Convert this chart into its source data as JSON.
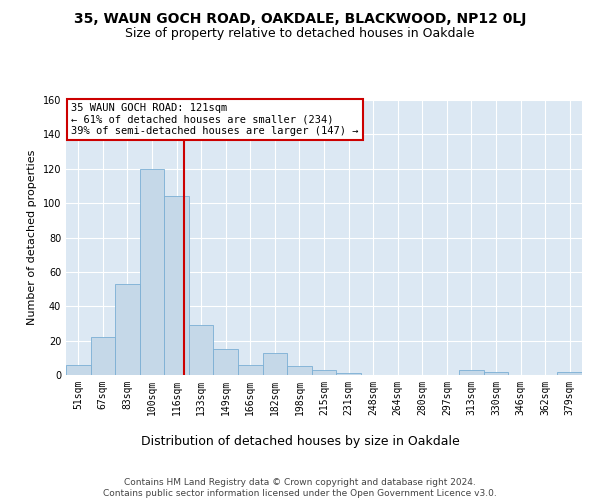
{
  "title": "35, WAUN GOCH ROAD, OAKDALE, BLACKWOOD, NP12 0LJ",
  "subtitle": "Size of property relative to detached houses in Oakdale",
  "xlabel": "Distribution of detached houses by size in Oakdale",
  "ylabel": "Number of detached properties",
  "categories": [
    "51sqm",
    "67sqm",
    "83sqm",
    "100sqm",
    "116sqm",
    "133sqm",
    "149sqm",
    "166sqm",
    "182sqm",
    "198sqm",
    "215sqm",
    "231sqm",
    "248sqm",
    "264sqm",
    "280sqm",
    "297sqm",
    "313sqm",
    "330sqm",
    "346sqm",
    "362sqm",
    "379sqm"
  ],
  "values": [
    6,
    22,
    53,
    120,
    104,
    29,
    15,
    6,
    13,
    5,
    3,
    1,
    0,
    0,
    0,
    0,
    3,
    2,
    0,
    0,
    2
  ],
  "bar_color": "#c5d8e8",
  "bar_edge_color": "#7bafd4",
  "property_line_label": "35 WAUN GOCH ROAD: 121sqm",
  "annotation_line1": "← 61% of detached houses are smaller (234)",
  "annotation_line2": "39% of semi-detached houses are larger (147) →",
  "annotation_box_color": "#ffffff",
  "annotation_box_edge_color": "#cc0000",
  "vline_color": "#cc0000",
  "vline_pos": 4.3,
  "ylim": [
    0,
    160
  ],
  "yticks": [
    0,
    20,
    40,
    60,
    80,
    100,
    120,
    140,
    160
  ],
  "footer_line1": "Contains HM Land Registry data © Crown copyright and database right 2024.",
  "footer_line2": "Contains public sector information licensed under the Open Government Licence v3.0.",
  "background_color": "#dce8f3",
  "grid_color": "#ffffff",
  "title_fontsize": 10,
  "subtitle_fontsize": 9,
  "xlabel_fontsize": 9,
  "ylabel_fontsize": 8,
  "tick_fontsize": 7,
  "footer_fontsize": 6.5,
  "annotation_fontsize": 7.5
}
